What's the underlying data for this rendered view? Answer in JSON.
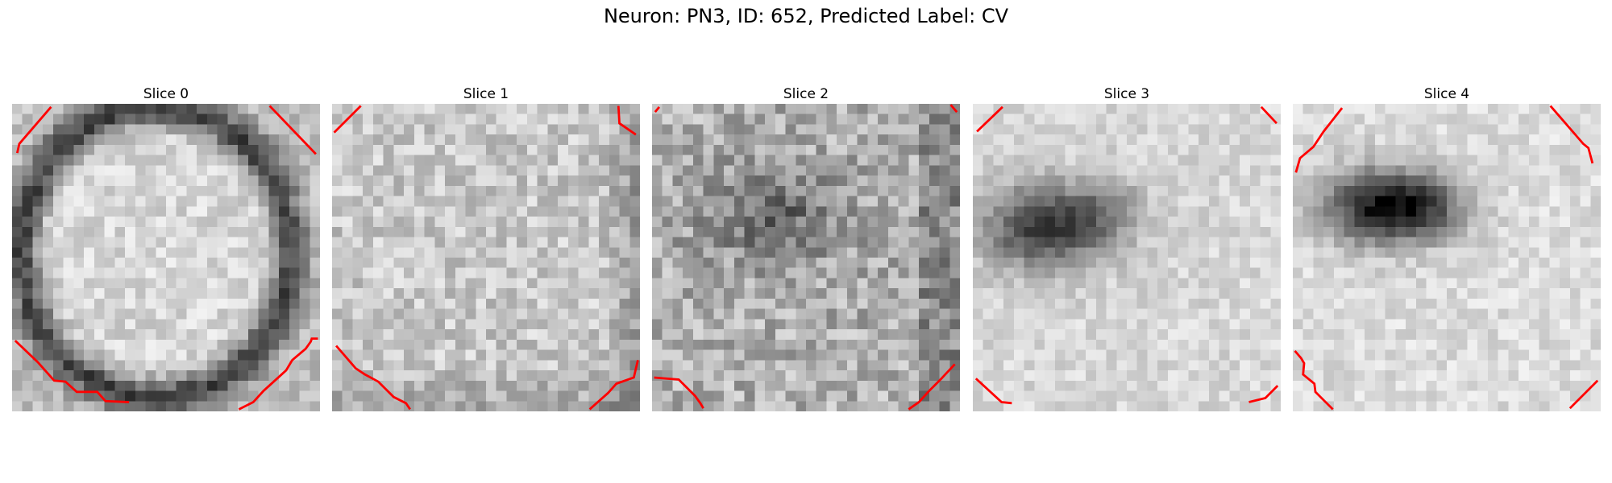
{
  "figure": {
    "title": "Neuron: PN3, ID: 652, Predicted Label: CV",
    "grid_size": 30,
    "colormap": "gray",
    "contour_color": "#ff0000"
  },
  "slices": [
    {
      "label": "Slice 0"
    },
    {
      "label": "Slice 1"
    },
    {
      "label": "Slice 2"
    },
    {
      "label": "Slice 3"
    },
    {
      "label": "Slice 4"
    }
  ]
}
